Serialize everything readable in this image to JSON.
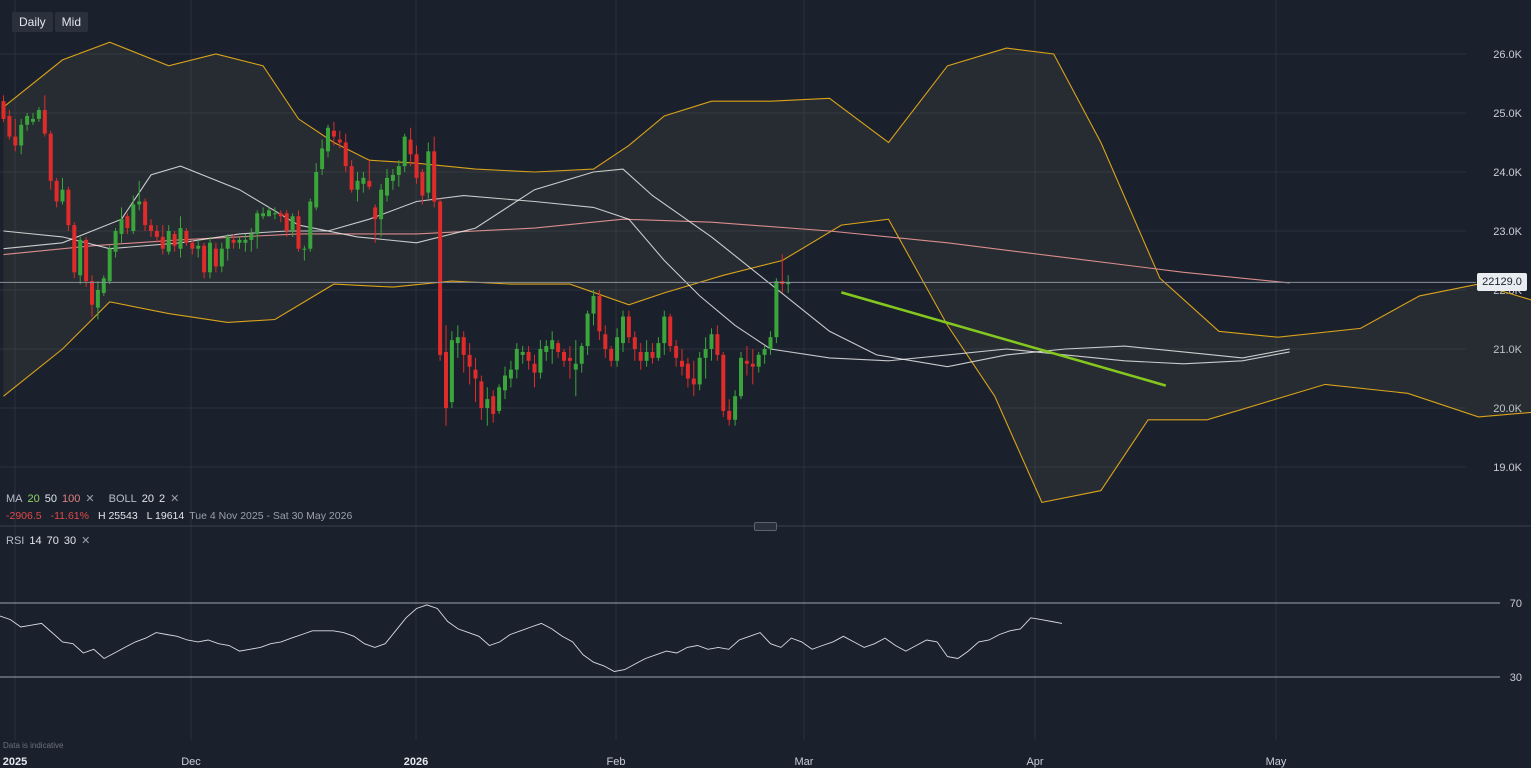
{
  "toolbar": {
    "timeframe": "Daily",
    "price_type": "Mid"
  },
  "legend": {
    "ma_label": "MA",
    "ma_periods": [
      "20",
      "50",
      "100"
    ],
    "boll_label": "BOLL",
    "boll_params": [
      "20",
      "2"
    ],
    "close_icon": "close-x-icon",
    "change": "-2906.5",
    "change_pct": "-11.61%",
    "high": "H 25543",
    "low": "L 19614",
    "date_range": "Tue 4 Nov 2025 - Sat 30 May 2026"
  },
  "rsi_legend": {
    "label": "RSI",
    "params": [
      "14",
      "70",
      "30"
    ]
  },
  "current_price": "22129.0",
  "footer_note": "Data is indicative",
  "colors": {
    "up": "#3aa53a",
    "down": "#e02b2b",
    "ma20": "#8fd16a",
    "ma50": "#e8e8e8",
    "ma100": "#d98c8c",
    "bollinger": "#d9a21b",
    "trendline": "#84c81f"
  },
  "chart_data": {
    "type": "candlestick",
    "x_labels": [
      "2025",
      "Dec",
      "2026",
      "Feb",
      "Mar",
      "Apr",
      "May"
    ],
    "y_ticks": [
      "26.0K",
      "25.0K",
      "24.0K",
      "23.0K",
      "22.0K",
      "21.0K",
      "20.0K",
      "19.0K"
    ],
    "ylim": [
      18000,
      26800
    ],
    "candles": [
      [
        25200,
        25300,
        24850,
        24900
      ],
      [
        24950,
        25050,
        24550,
        24600
      ],
      [
        24600,
        24900,
        24350,
        24450
      ],
      [
        24450,
        24900,
        24300,
        24800
      ],
      [
        24800,
        25000,
        24700,
        24950
      ],
      [
        24850,
        25000,
        24800,
        24900
      ],
      [
        24900,
        25100,
        24850,
        25050
      ],
      [
        25050,
        25300,
        24600,
        24650
      ],
      [
        24650,
        24700,
        23700,
        23850
      ],
      [
        23850,
        23900,
        23400,
        23500
      ],
      [
        23500,
        23900,
        23450,
        23700
      ],
      [
        23700,
        23750,
        23000,
        23100
      ],
      [
        23100,
        23150,
        22200,
        22300
      ],
      [
        22250,
        22900,
        22100,
        22850
      ],
      [
        22850,
        22900,
        22050,
        22150
      ],
      [
        22150,
        22250,
        21550,
        21750
      ],
      [
        21700,
        22150,
        21500,
        22000
      ],
      [
        21950,
        22250,
        21900,
        22200
      ],
      [
        22150,
        22750,
        22100,
        22700
      ],
      [
        22650,
        23050,
        22550,
        23000
      ],
      [
        22950,
        23400,
        22800,
        23200
      ],
      [
        23250,
        23300,
        22950,
        23050
      ],
      [
        23000,
        23600,
        22950,
        23450
      ],
      [
        23450,
        23850,
        23350,
        23500
      ],
      [
        23500,
        23550,
        23000,
        23100
      ],
      [
        23100,
        23200,
        22900,
        23000
      ],
      [
        23000,
        23100,
        22800,
        22900
      ],
      [
        22900,
        23100,
        22600,
        22700
      ],
      [
        22650,
        23100,
        22600,
        23000
      ],
      [
        22950,
        23000,
        22650,
        22750
      ],
      [
        22700,
        23250,
        22550,
        23050
      ],
      [
        23000,
        23050,
        22750,
        22800
      ],
      [
        22800,
        22850,
        22600,
        22700
      ],
      [
        22700,
        22850,
        22550,
        22750
      ],
      [
        22750,
        22800,
        22200,
        22300
      ],
      [
        22300,
        22900,
        22200,
        22800
      ],
      [
        22700,
        22800,
        22300,
        22400
      ],
      [
        22400,
        22800,
        22300,
        22700
      ],
      [
        22700,
        22950,
        22500,
        22900
      ],
      [
        22850,
        22950,
        22700,
        22800
      ],
      [
        22800,
        22900,
        22700,
        22850
      ],
      [
        22800,
        22950,
        22650,
        22850
      ],
      [
        22850,
        23050,
        22650,
        22950
      ],
      [
        22950,
        23350,
        22700,
        23300
      ],
      [
        23250,
        23400,
        23200,
        23300
      ],
      [
        23250,
        23400,
        23250,
        23350
      ],
      [
        23300,
        23400,
        23200,
        23300
      ],
      [
        23300,
        23350,
        23150,
        23250
      ],
      [
        23300,
        23350,
        22900,
        23000
      ],
      [
        23000,
        23300,
        22900,
        23250
      ],
      [
        23250,
        23350,
        22650,
        22700
      ],
      [
        22700,
        22750,
        22500,
        22700
      ],
      [
        22700,
        23550,
        22650,
        23500
      ],
      [
        23400,
        24150,
        23350,
        24000
      ],
      [
        24050,
        24550,
        23950,
        24400
      ],
      [
        24350,
        24800,
        24250,
        24750
      ],
      [
        24700,
        24850,
        24450,
        24600
      ],
      [
        24550,
        24700,
        24400,
        24500
      ],
      [
        24500,
        24650,
        24000,
        24100
      ],
      [
        24100,
        24200,
        23650,
        23700
      ],
      [
        23700,
        24000,
        23500,
        23850
      ],
      [
        23800,
        24000,
        23650,
        23900
      ],
      [
        23850,
        24200,
        23700,
        23750
      ],
      [
        23400,
        23450,
        22800,
        23200
      ],
      [
        23200,
        23800,
        22900,
        23700
      ],
      [
        23600,
        24050,
        23500,
        23900
      ],
      [
        23850,
        24050,
        23700,
        23950
      ],
      [
        23950,
        24200,
        23750,
        24100
      ],
      [
        24100,
        24650,
        24000,
        24600
      ],
      [
        24550,
        24750,
        24100,
        24300
      ],
      [
        24300,
        24450,
        23800,
        23900
      ],
      [
        24000,
        24050,
        23450,
        23600
      ],
      [
        23650,
        24500,
        23550,
        24350
      ],
      [
        24350,
        24600,
        23400,
        23500
      ],
      [
        23500,
        23550,
        20800,
        20900
      ],
      [
        20950,
        21400,
        19700,
        20000
      ],
      [
        20100,
        21300,
        20000,
        21150
      ],
      [
        21100,
        21400,
        20850,
        21200
      ],
      [
        21200,
        21300,
        20600,
        20900
      ],
      [
        20900,
        21100,
        20400,
        20700
      ],
      [
        20650,
        20850,
        20100,
        20500
      ],
      [
        20450,
        20550,
        19800,
        20000
      ],
      [
        20000,
        20350,
        19700,
        20150
      ],
      [
        20200,
        20300,
        19750,
        19900
      ],
      [
        19950,
        20400,
        19900,
        20350
      ],
      [
        20300,
        20700,
        20150,
        20550
      ],
      [
        20500,
        20800,
        20350,
        20650
      ],
      [
        20650,
        21100,
        20500,
        21000
      ],
      [
        20900,
        21050,
        20750,
        20950
      ],
      [
        20950,
        21050,
        20650,
        20800
      ],
      [
        20750,
        20900,
        20350,
        20600
      ],
      [
        20600,
        21150,
        20500,
        21000
      ],
      [
        20950,
        21150,
        20800,
        21050
      ],
      [
        21000,
        21300,
        20750,
        21150
      ],
      [
        21100,
        21150,
        20850,
        20950
      ],
      [
        20950,
        21000,
        20700,
        20800
      ],
      [
        20850,
        21050,
        20500,
        20800
      ],
      [
        20650,
        21150,
        20200,
        20750
      ],
      [
        20750,
        21100,
        20600,
        21050
      ],
      [
        21050,
        21650,
        20900,
        21600
      ],
      [
        21600,
        22000,
        21400,
        21900
      ],
      [
        21900,
        22000,
        21150,
        21300
      ],
      [
        21250,
        21400,
        20850,
        21000
      ],
      [
        21000,
        21050,
        20700,
        20800
      ],
      [
        20800,
        21350,
        20700,
        21200
      ],
      [
        21100,
        21650,
        20950,
        21550
      ],
      [
        21550,
        21650,
        21100,
        21200
      ],
      [
        21200,
        21300,
        20800,
        21000
      ],
      [
        20950,
        21100,
        20650,
        20800
      ],
      [
        20800,
        21150,
        20700,
        20950
      ],
      [
        20950,
        21100,
        20750,
        20850
      ],
      [
        20850,
        21200,
        20800,
        21100
      ],
      [
        21100,
        21650,
        20900,
        21550
      ],
      [
        21550,
        21600,
        20950,
        21050
      ],
      [
        21050,
        21150,
        20700,
        20850
      ],
      [
        20800,
        21000,
        20550,
        20700
      ],
      [
        20750,
        20850,
        20350,
        20500
      ],
      [
        20500,
        20800,
        20200,
        20400
      ],
      [
        20400,
        20950,
        20300,
        20850
      ],
      [
        20850,
        21200,
        20500,
        21000
      ],
      [
        21000,
        21350,
        20800,
        21250
      ],
      [
        21250,
        21400,
        20800,
        20900
      ],
      [
        20900,
        20950,
        19850,
        19950
      ],
      [
        19950,
        20150,
        19700,
        19800
      ],
      [
        19800,
        20300,
        19700,
        20200
      ],
      [
        20200,
        20950,
        20150,
        20850
      ],
      [
        20800,
        21050,
        20550,
        20750
      ],
      [
        20750,
        21000,
        20400,
        20700
      ],
      [
        20700,
        20950,
        20600,
        20900
      ],
      [
        20900,
        21050,
        20750,
        21000
      ],
      [
        21000,
        21300,
        20900,
        21200
      ],
      [
        21200,
        22200,
        21100,
        22150
      ],
      [
        22150,
        22600,
        21950,
        22100
      ],
      [
        22100,
        22250,
        21950,
        22130
      ]
    ],
    "ma20": [
      [
        0,
        23000
      ],
      [
        10,
        22900
      ],
      [
        18,
        22700
      ],
      [
        30,
        22800
      ],
      [
        40,
        22950
      ],
      [
        48,
        23000
      ],
      [
        55,
        23000
      ],
      [
        62,
        23200
      ],
      [
        70,
        23500
      ],
      [
        78,
        23600
      ],
      [
        90,
        23500
      ],
      [
        100,
        23400
      ],
      [
        106,
        23200
      ],
      [
        112,
        22500
      ],
      [
        118,
        21900
      ],
      [
        124,
        21400
      ],
      [
        130,
        21000
      ],
      [
        140,
        20850
      ],
      [
        150,
        20800
      ],
      [
        160,
        20900
      ],
      [
        170,
        21000
      ],
      [
        180,
        20900
      ],
      [
        190,
        20800
      ],
      [
        200,
        20750
      ],
      [
        210,
        20800
      ],
      [
        218,
        20950
      ]
    ],
    "ma50": [
      [
        0,
        22700
      ],
      [
        10,
        22800
      ],
      [
        20,
        23200
      ],
      [
        25,
        23950
      ],
      [
        30,
        24100
      ],
      [
        40,
        23700
      ],
      [
        50,
        23100
      ],
      [
        60,
        22900
      ],
      [
        70,
        22800
      ],
      [
        80,
        23050
      ],
      [
        90,
        23700
      ],
      [
        100,
        24000
      ],
      [
        105,
        24050
      ],
      [
        110,
        23600
      ],
      [
        120,
        22900
      ],
      [
        130,
        22100
      ],
      [
        140,
        21300
      ],
      [
        148,
        20900
      ],
      [
        160,
        20700
      ],
      [
        170,
        20900
      ],
      [
        180,
        21000
      ],
      [
        190,
        21050
      ],
      [
        200,
        20950
      ],
      [
        210,
        20850
      ],
      [
        218,
        21000
      ]
    ],
    "ma100": [
      [
        0,
        22600
      ],
      [
        15,
        22750
      ],
      [
        30,
        22850
      ],
      [
        50,
        22950
      ],
      [
        70,
        22950
      ],
      [
        90,
        23050
      ],
      [
        105,
        23200
      ],
      [
        120,
        23150
      ],
      [
        140,
        23000
      ],
      [
        160,
        22800
      ],
      [
        180,
        22550
      ],
      [
        200,
        22300
      ],
      [
        218,
        22120
      ]
    ],
    "boll_upper": [
      [
        0,
        25100
      ],
      [
        10,
        25900
      ],
      [
        18,
        26200
      ],
      [
        28,
        25800
      ],
      [
        36,
        26000
      ],
      [
        44,
        25800
      ],
      [
        50,
        24900
      ],
      [
        56,
        24500
      ],
      [
        62,
        24200
      ],
      [
        70,
        24150
      ],
      [
        80,
        24050
      ],
      [
        90,
        24000
      ],
      [
        100,
        24050
      ],
      [
        106,
        24450
      ],
      [
        112,
        24950
      ],
      [
        120,
        25200
      ],
      [
        130,
        25200
      ],
      [
        140,
        25250
      ],
      [
        150,
        24500
      ],
      [
        160,
        25800
      ],
      [
        170,
        26100
      ],
      [
        178,
        26000
      ],
      [
        186,
        24500
      ],
      [
        196,
        22200
      ],
      [
        206,
        21300
      ],
      [
        216,
        21200
      ],
      [
        230,
        21350
      ],
      [
        240,
        21900
      ],
      [
        250,
        22100
      ],
      [
        260,
        21800
      ],
      [
        268,
        21600
      ],
      [
        272,
        22200
      ]
    ],
    "boll_lower": [
      [
        0,
        20200
      ],
      [
        10,
        21000
      ],
      [
        18,
        21800
      ],
      [
        28,
        21600
      ],
      [
        38,
        21450
      ],
      [
        46,
        21500
      ],
      [
        56,
        22100
      ],
      [
        66,
        22050
      ],
      [
        76,
        22150
      ],
      [
        86,
        22100
      ],
      [
        96,
        22100
      ],
      [
        106,
        21750
      ],
      [
        112,
        21950
      ],
      [
        122,
        22250
      ],
      [
        132,
        22500
      ],
      [
        142,
        23100
      ],
      [
        150,
        23200
      ],
      [
        160,
        21400
      ],
      [
        168,
        20200
      ],
      [
        176,
        18400
      ],
      [
        186,
        18600
      ],
      [
        194,
        19800
      ],
      [
        204,
        19800
      ],
      [
        214,
        20100
      ],
      [
        224,
        20400
      ],
      [
        238,
        20250
      ],
      [
        250,
        19850
      ],
      [
        262,
        19950
      ],
      [
        272,
        19700
      ]
    ],
    "trendline": [
      [
        21960,
        0
      ],
      [
        20380,
        1
      ]
    ],
    "rsi": [
      63,
      61,
      57,
      58,
      59,
      54,
      49,
      48,
      43,
      45,
      40,
      43,
      46,
      49,
      51,
      54,
      53,
      52,
      50,
      49,
      50,
      48,
      47,
      44,
      45,
      46,
      48,
      49,
      51,
      53,
      55,
      55,
      55,
      54,
      52,
      48,
      46,
      48,
      55,
      62,
      67,
      69,
      67,
      60,
      56,
      54,
      52,
      47,
      49,
      53,
      55,
      57,
      59,
      56,
      52,
      49,
      42,
      38,
      36,
      33,
      34,
      37,
      40,
      42,
      44,
      43,
      46,
      47,
      45,
      46,
      45,
      50,
      52,
      54,
      48,
      46,
      51,
      49,
      45,
      47,
      49,
      52,
      49,
      46,
      48,
      51,
      47,
      44,
      47,
      50,
      49,
      41,
      40,
      44,
      49,
      50,
      53,
      55,
      56,
      62,
      61,
      60,
      59
    ]
  }
}
